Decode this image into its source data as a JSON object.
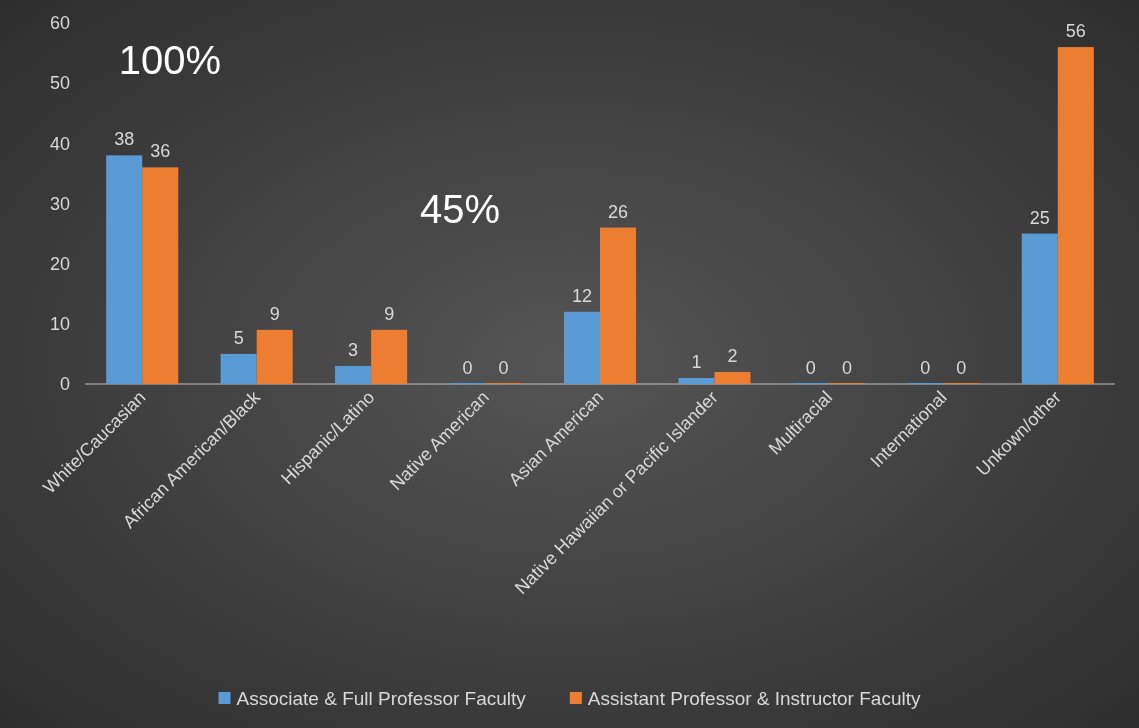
{
  "chart_data": {
    "type": "bar",
    "categories": [
      "White/Caucasian",
      "African American/Black",
      "Hispanic/Latino",
      "Native American",
      "Asian American",
      "Native Hawaiian or Pacific Islander",
      "Multiracial",
      "International",
      "Unkown/other"
    ],
    "series": [
      {
        "name": "Associate & Full Professor Faculty",
        "color": "#5b9bd5",
        "values": [
          38,
          5,
          3,
          0,
          12,
          1,
          0,
          0,
          25
        ]
      },
      {
        "name": "Assistant Professor & Instructor Faculty",
        "color": "#ed7d31",
        "values": [
          36,
          9,
          9,
          0,
          26,
          2,
          0,
          0,
          56
        ]
      }
    ],
    "ylim": [
      0,
      60
    ],
    "yticks": [
      0,
      10,
      20,
      30,
      40,
      50,
      60
    ],
    "data_labels": true,
    "legend": "bottom",
    "annotations": [
      "100%",
      "45%"
    ]
  }
}
